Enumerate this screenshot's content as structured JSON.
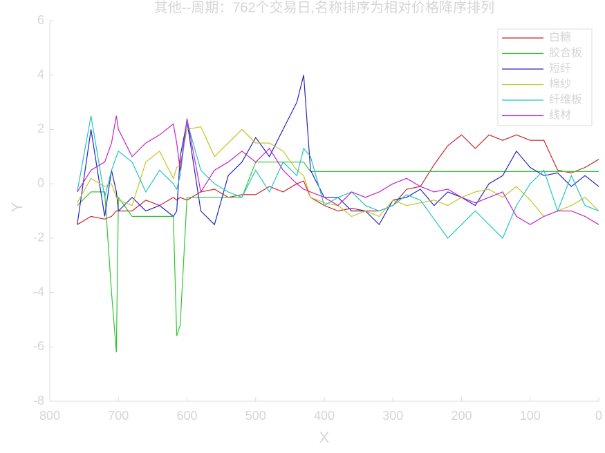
{
  "chart_data": {
    "type": "line",
    "title": "其他--周期：762个交易日,名称排序为相对价格降序排列",
    "x_label": "X",
    "y_label": "Y",
    "xlim": [
      800,
      0
    ],
    "xticks": [
      800,
      700,
      600,
      500,
      400,
      300,
      200,
      100,
      0
    ],
    "ylim": [
      -8,
      6
    ],
    "yticks": [
      -8,
      -6,
      -4,
      -2,
      0,
      2,
      4,
      6
    ],
    "legend": "northeast",
    "x": [
      760,
      740,
      720,
      710,
      703,
      700,
      680,
      660,
      640,
      620,
      615,
      610,
      600,
      580,
      560,
      540,
      520,
      500,
      480,
      460,
      440,
      430,
      420,
      400,
      380,
      360,
      340,
      320,
      300,
      280,
      260,
      240,
      220,
      200,
      180,
      160,
      140,
      120,
      100,
      80,
      60,
      40,
      20,
      0
    ],
    "series": [
      {
        "name": "白糖",
        "color": "#c8262b",
        "values": [
          -1.5,
          -1.2,
          -1.3,
          -1.2,
          -1.0,
          -1.0,
          -1.0,
          -0.6,
          -0.8,
          -0.5,
          -0.6,
          -0.5,
          -0.6,
          -0.3,
          -0.2,
          -0.5,
          -0.4,
          -0.4,
          -0.1,
          -0.3,
          0,
          0.1,
          -0.5,
          -0.8,
          -1,
          -0.9,
          -1,
          -1,
          -0.8,
          -0.2,
          -0.1,
          0.7,
          1.4,
          1.8,
          1.3,
          1.8,
          1.6,
          1.8,
          1.6,
          1.6,
          0.5,
          0.4,
          0.6,
          0.9
        ]
      },
      {
        "name": "胶合板",
        "color": "#2fc72f",
        "values": [
          -0.8,
          -0.3,
          -0.3,
          -4.0,
          -6.2,
          -0.5,
          -1.2,
          -1.2,
          -1.2,
          -1.2,
          -5.6,
          -5.2,
          -0.5,
          -0.5,
          -0.5,
          -0.5,
          -0.5,
          0.8,
          0.8,
          0.8,
          0.8,
          0.8,
          0.45,
          0.45,
          0.45,
          0.45,
          0.45,
          0.45,
          0.45,
          0.45,
          0.45,
          0.45,
          0.45,
          0.45,
          0.45,
          0.45,
          0.45,
          0.45,
          0.45,
          0.45,
          0.45,
          0.45,
          0.45,
          0.45
        ]
      },
      {
        "name": "短纤",
        "color": "#2424c0",
        "values": [
          -1.5,
          2.0,
          -1.2,
          0.5,
          -0.3,
          -1.0,
          -0.5,
          -1.0,
          -0.8,
          -1.2,
          -1.0,
          1.0,
          2.3,
          -1.0,
          -1.5,
          0.3,
          0.8,
          1.7,
          1.0,
          2.0,
          3.0,
          4.0,
          0.5,
          -0.5,
          -0.5,
          -1.0,
          -1.0,
          -1.5,
          -0.6,
          -0.5,
          -0.2,
          -0.8,
          -0.3,
          -0.5,
          -0.8,
          0,
          0.3,
          1.2,
          0.6,
          0.3,
          0.4,
          -0.1,
          0.3,
          -0.1
        ]
      },
      {
        "name": "棉纱",
        "color": "#c4c424",
        "values": [
          -0.7,
          0.2,
          -0.1,
          0,
          -0.5,
          -0.6,
          -0.8,
          0.8,
          1.2,
          0.2,
          0.6,
          0.7,
          2.0,
          2.1,
          1.0,
          1.5,
          2.0,
          1.5,
          1.5,
          1.2,
          0.5,
          0.3,
          -0.5,
          -0.7,
          -0.8,
          -1.2,
          -1.0,
          -1.2,
          -0.6,
          -0.8,
          -0.7,
          -0.6,
          -0.8,
          -0.5,
          -0.3,
          -0.2,
          -0.5,
          -0.1,
          -0.6,
          -1.2,
          -1.0,
          -0.8,
          -0.5,
          -1.0
        ]
      },
      {
        "name": "纤维板",
        "color": "#22c4c4",
        "values": [
          -0.3,
          2.5,
          -0.5,
          0.5,
          1.0,
          1.2,
          0.8,
          -0.3,
          0.5,
          0,
          -0.2,
          0.3,
          2.3,
          0.5,
          0,
          -0.3,
          -0.5,
          0.5,
          -0.3,
          0.8,
          0.3,
          1.3,
          1.0,
          -0.8,
          -0.5,
          -0.3,
          -0.8,
          -1.0,
          -0.8,
          -0.4,
          -0.6,
          -1.3,
          -2.0,
          -1.5,
          -1.0,
          -1.5,
          -2.0,
          -0.8,
          0,
          0.5,
          -1.0,
          0.3,
          -0.8,
          -1.0
        ]
      },
      {
        "name": "线材",
        "color": "#c424c4",
        "values": [
          -0.3,
          0.5,
          0.8,
          1.5,
          2.5,
          2.0,
          1.0,
          1.5,
          1.8,
          2.2,
          1.5,
          0.5,
          2.4,
          -0.3,
          0.5,
          0.8,
          1.2,
          0.8,
          1.3,
          0.5,
          0,
          -0.2,
          -0.3,
          -0.5,
          -0.8,
          -0.3,
          -0.5,
          -0.3,
          0,
          0.2,
          -0.1,
          -0.3,
          -0.2,
          -0.5,
          -0.7,
          -0.5,
          -0.3,
          -1.2,
          -1.5,
          -1.2,
          -1.0,
          -1.0,
          -1.2,
          -1.5
        ]
      }
    ]
  }
}
